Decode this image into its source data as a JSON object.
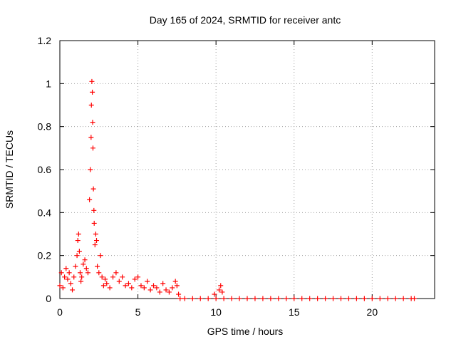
{
  "chart_data": {
    "type": "scatter",
    "title": "Day 165 of 2024, SRMTID for receiver antc",
    "xlabel": "GPS time / hours",
    "ylabel": "SRMTID / TECUs",
    "xlim": [
      0,
      24
    ],
    "ylim": [
      0,
      1.2
    ],
    "x_ticks": [
      0,
      5,
      10,
      15,
      20
    ],
    "y_ticks": [
      0,
      0.2,
      0.4,
      0.6,
      0.8,
      1,
      1.2
    ],
    "x_tick_labels": [
      "0",
      "5",
      "10",
      "15",
      "20"
    ],
    "y_tick_labels": [
      "0",
      "0.2",
      "0.4",
      "0.6",
      "0.8",
      "1",
      "1.2"
    ],
    "grid": true,
    "marker": "+",
    "series": [
      {
        "name": "SRMTID",
        "color": "#ff0000",
        "x": [
          0.0,
          0.1,
          0.2,
          0.3,
          0.4,
          0.5,
          0.6,
          0.7,
          0.8,
          0.9,
          1.0,
          1.1,
          1.15,
          1.2,
          1.25,
          1.3,
          1.35,
          1.4,
          1.5,
          1.6,
          1.7,
          1.8,
          1.9,
          1.95,
          2.0,
          2.02,
          2.05,
          2.08,
          2.1,
          2.12,
          2.15,
          2.18,
          2.2,
          2.25,
          2.3,
          2.35,
          2.4,
          2.5,
          2.6,
          2.7,
          2.8,
          2.9,
          3.0,
          3.2,
          3.4,
          3.6,
          3.8,
          4.0,
          4.2,
          4.4,
          4.6,
          4.8,
          5.0,
          5.2,
          5.4,
          5.6,
          5.8,
          6.0,
          6.2,
          6.4,
          6.6,
          6.8,
          7.0,
          7.2,
          7.4,
          7.5,
          7.6,
          7.7,
          8.0,
          8.5,
          9.0,
          9.5,
          9.9,
          10.0,
          10.2,
          10.3,
          10.4,
          10.5,
          11.0,
          11.5,
          12.0,
          12.5,
          13.0,
          13.5,
          14.0,
          14.5,
          15.0,
          15.5,
          16.0,
          16.5,
          17.0,
          17.5,
          18.0,
          18.5,
          19.0,
          19.5,
          20.0,
          20.5,
          21.0,
          21.5,
          22.0,
          22.5,
          22.7
        ],
        "y": [
          0.06,
          0.12,
          0.05,
          0.1,
          0.14,
          0.09,
          0.12,
          0.07,
          0.04,
          0.1,
          0.15,
          0.2,
          0.27,
          0.3,
          0.22,
          0.12,
          0.08,
          0.1,
          0.16,
          0.18,
          0.14,
          0.12,
          0.46,
          0.6,
          0.75,
          0.9,
          1.01,
          0.96,
          0.82,
          0.7,
          0.51,
          0.41,
          0.35,
          0.25,
          0.3,
          0.27,
          0.15,
          0.12,
          0.2,
          0.1,
          0.06,
          0.09,
          0.07,
          0.05,
          0.1,
          0.12,
          0.08,
          0.1,
          0.06,
          0.07,
          0.05,
          0.09,
          0.1,
          0.06,
          0.05,
          0.08,
          0.04,
          0.06,
          0.05,
          0.03,
          0.07,
          0.04,
          0.03,
          0.05,
          0.08,
          0.06,
          0.02,
          0.0,
          0.0,
          0.0,
          0.0,
          0.0,
          0.02,
          0.0,
          0.04,
          0.06,
          0.03,
          0.0,
          0.0,
          0.0,
          0.0,
          0.0,
          0.0,
          0.0,
          0.0,
          0.0,
          0.0,
          0.0,
          0.0,
          0.0,
          0.0,
          0.0,
          0.0,
          0.0,
          0.0,
          0.0,
          0.0,
          0.0,
          0.0,
          0.0,
          0.0,
          0.0,
          0.0
        ]
      }
    ]
  }
}
